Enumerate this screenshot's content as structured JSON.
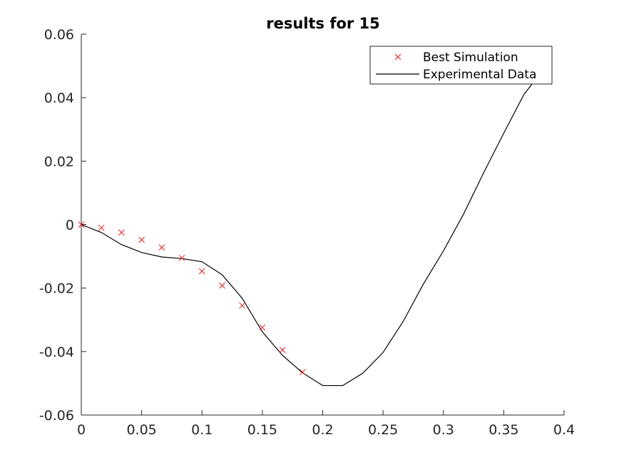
{
  "chart_data": {
    "type": "line",
    "title": "results for 15",
    "xlabel": "",
    "ylabel": "",
    "xlim": [
      0,
      0.4
    ],
    "ylim": [
      -0.06,
      0.06
    ],
    "x_ticks": [
      0,
      0.05,
      0.1,
      0.15,
      0.2,
      0.25,
      0.3,
      0.35,
      0.4
    ],
    "x_tick_labels": [
      "0",
      "0.05",
      "0.1",
      "0.15",
      "0.2",
      "0.25",
      "0.3",
      "0.35",
      "0.4"
    ],
    "y_ticks": [
      -0.06,
      -0.04,
      -0.02,
      0,
      0.02,
      0.04,
      0.06
    ],
    "y_tick_labels": [
      "-0.06",
      "-0.04",
      "-0.02",
      "0",
      "0.02",
      "0.04",
      "0.06"
    ],
    "grid": false,
    "legend_position": "top-right",
    "series": [
      {
        "name": "Best Simulation",
        "marker": "x",
        "color": "#e3191c",
        "x": [
          0,
          0.0167,
          0.0333,
          0.05,
          0.0667,
          0.0833,
          0.1,
          0.1167,
          0.1333,
          0.15,
          0.1667,
          0.1833
        ],
        "y": [
          0,
          -0.001,
          -0.0025,
          -0.0048,
          -0.0072,
          -0.0105,
          -0.0147,
          -0.0192,
          -0.0255,
          -0.0324,
          -0.0395,
          -0.0465
        ]
      },
      {
        "name": "Experimental Data",
        "marker": "line",
        "color": "#000000",
        "x": [
          0,
          0.0167,
          0.0333,
          0.05,
          0.0667,
          0.0833,
          0.1,
          0.1167,
          0.1333,
          0.15,
          0.1667,
          0.1833,
          0.2,
          0.2167,
          0.2333,
          0.25,
          0.2667,
          0.2833,
          0.3,
          0.3167,
          0.3333,
          0.35,
          0.3667,
          0.38
        ],
        "y": [
          0,
          -0.0025,
          -0.0063,
          -0.0088,
          -0.0102,
          -0.0107,
          -0.0117,
          -0.0158,
          -0.0232,
          -0.0338,
          -0.0412,
          -0.0467,
          -0.0507,
          -0.0507,
          -0.0468,
          -0.0403,
          -0.0305,
          -0.0188,
          -0.0083,
          0.0033,
          0.0163,
          0.0288,
          0.041,
          0.0475
        ]
      }
    ]
  }
}
